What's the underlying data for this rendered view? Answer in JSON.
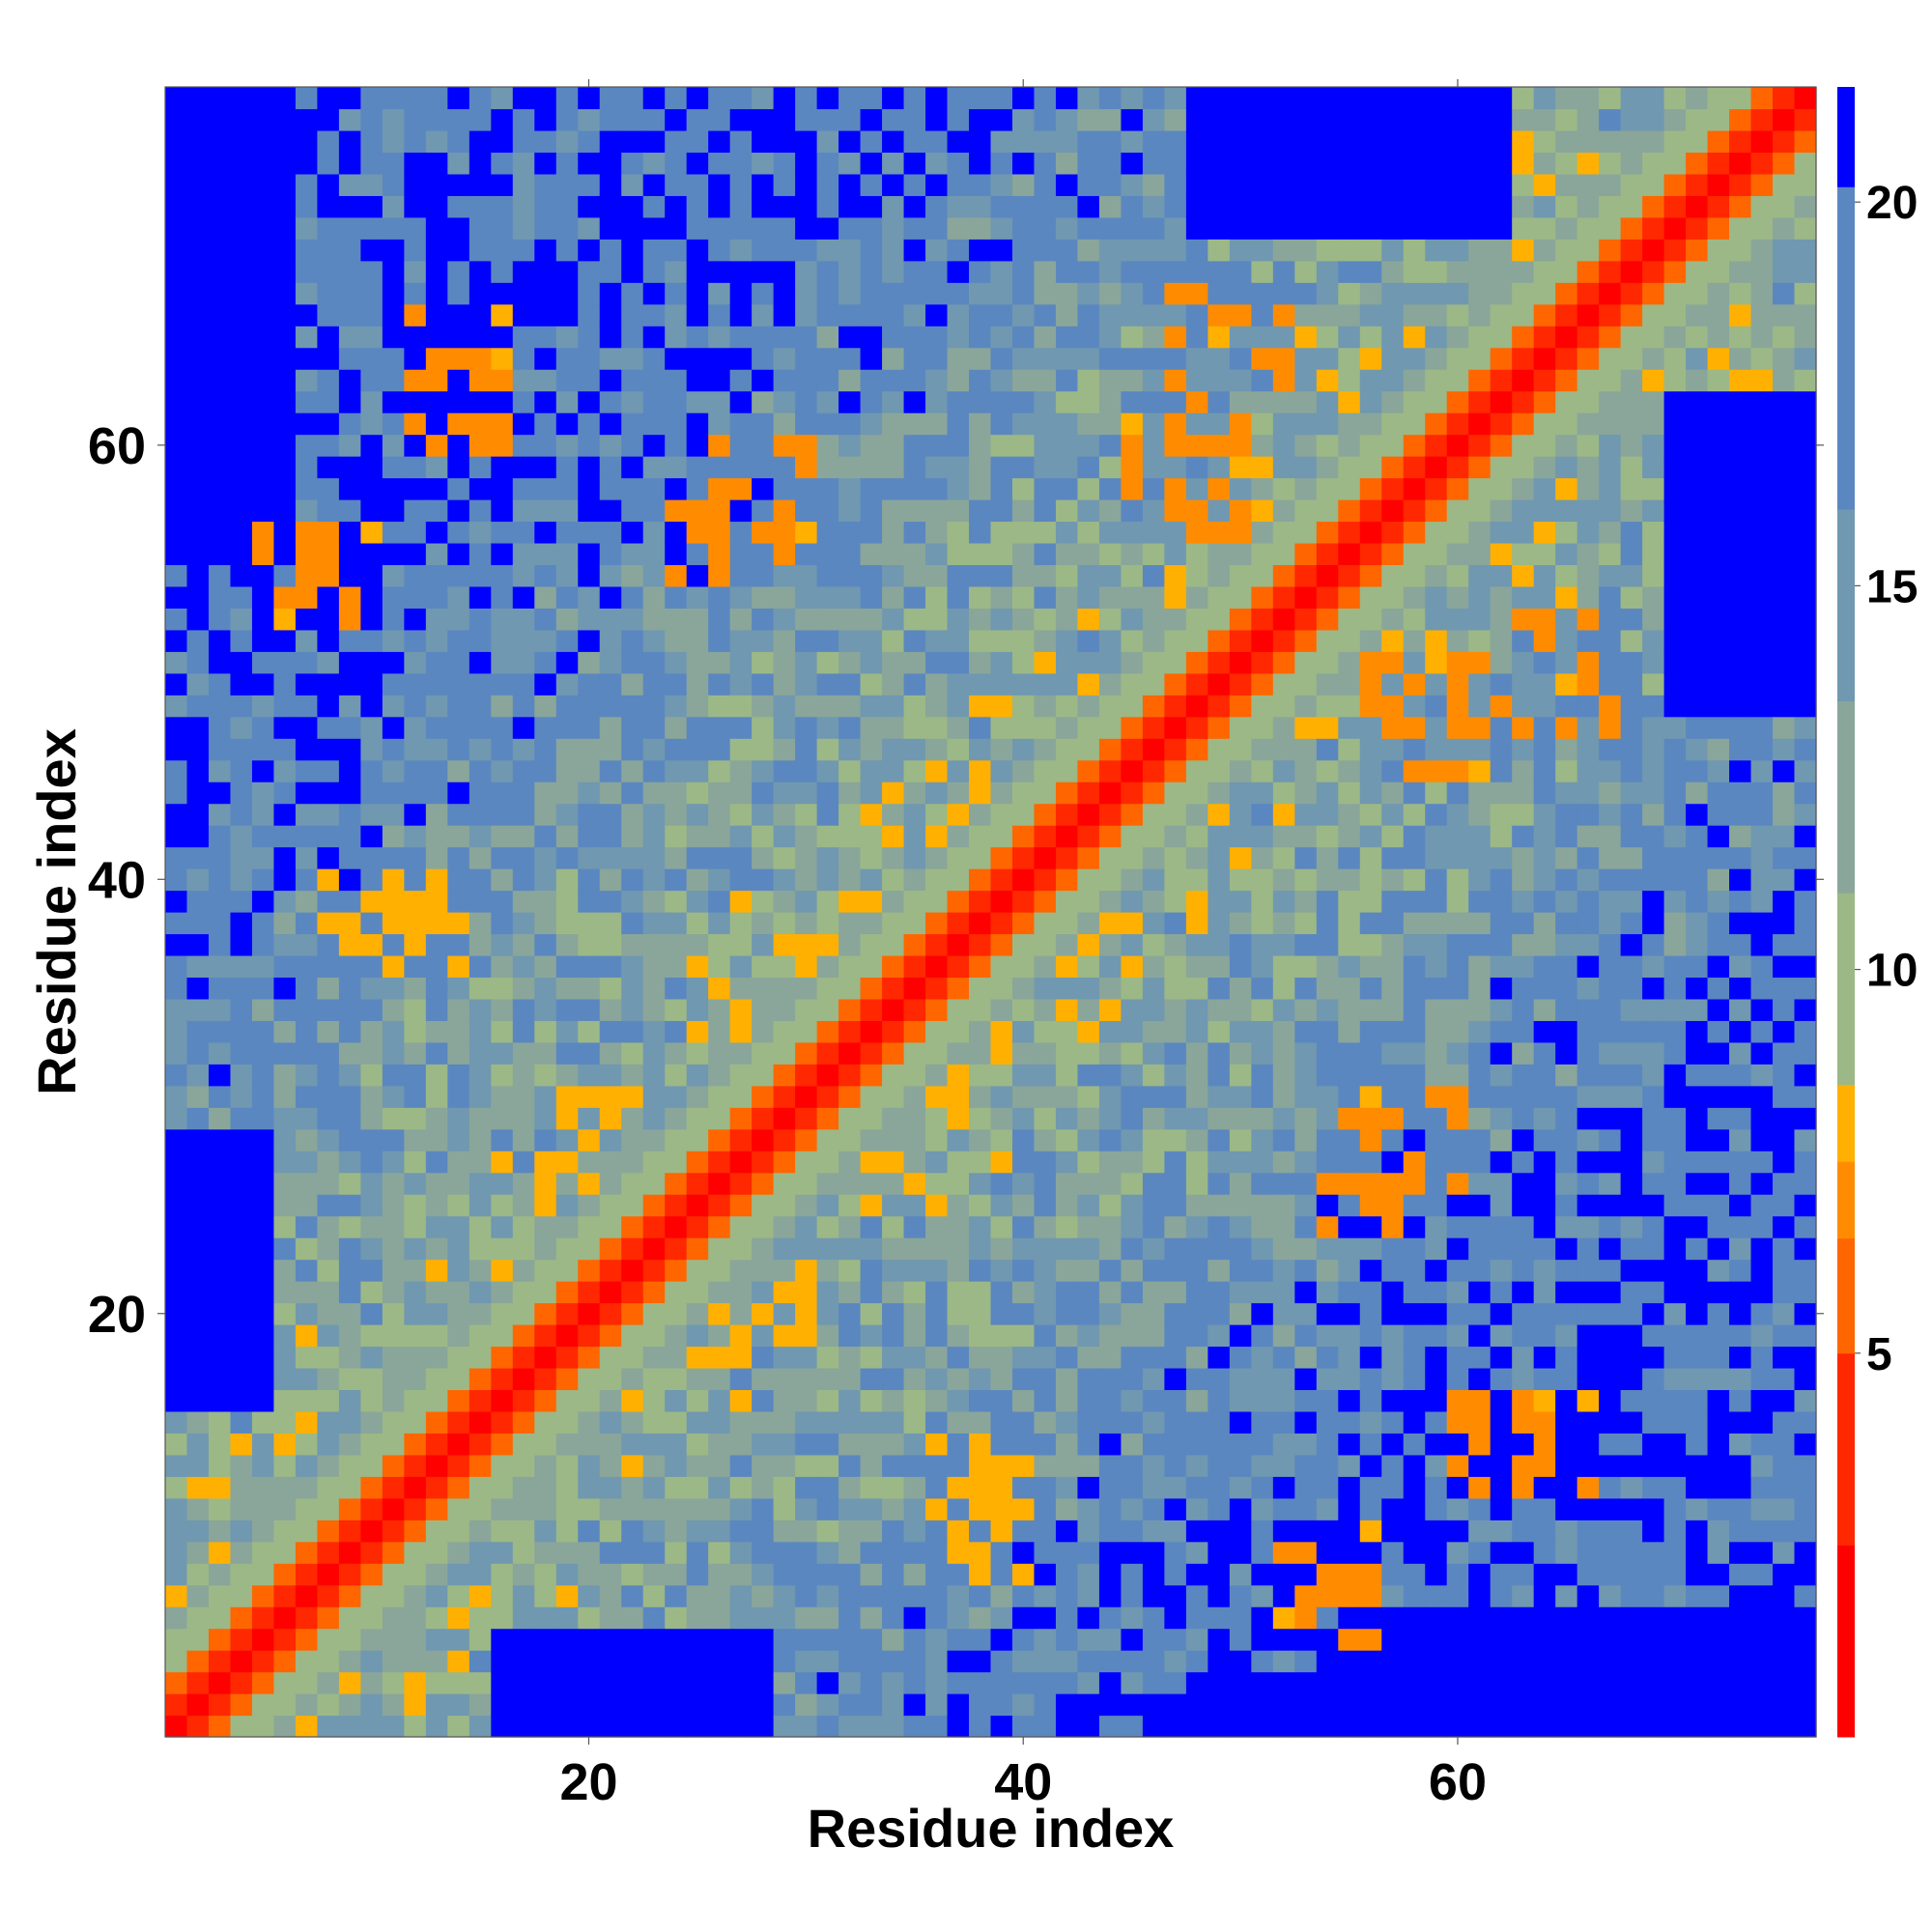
{
  "chart_data": {
    "type": "heatmap",
    "title": "",
    "xlabel": "Residue index",
    "ylabel": "Residue index",
    "n_residues": 76,
    "xlim": [
      1,
      76
    ],
    "ylim": [
      1,
      76
    ],
    "x_ticks": [
      {
        "value": 20,
        "label": "20"
      },
      {
        "value": 40,
        "label": "40"
      },
      {
        "value": 60,
        "label": "60"
      }
    ],
    "y_ticks": [
      {
        "value": 20,
        "label": "20"
      },
      {
        "value": 40,
        "label": "40"
      },
      {
        "value": 60,
        "label": "60"
      }
    ],
    "colorbar": {
      "range": [
        0,
        21.5
      ],
      "ticks": [
        {
          "value": 5,
          "label": "5"
        },
        {
          "value": 10,
          "label": "10"
        },
        {
          "value": 15,
          "label": "15"
        },
        {
          "value": 20,
          "label": "20"
        }
      ],
      "bands": [
        {
          "min": 0,
          "max": 2.5,
          "color": "#ff0000"
        },
        {
          "min": 2.5,
          "max": 5,
          "color": "#ff2800"
        },
        {
          "min": 5,
          "max": 6.5,
          "color": "#ff6600"
        },
        {
          "min": 6.5,
          "max": 7.5,
          "color": "#ff8c00"
        },
        {
          "min": 7.5,
          "max": 8.5,
          "color": "#ffb000"
        },
        {
          "min": 8.5,
          "max": 11,
          "color": "#9cb886"
        },
        {
          "min": 11,
          "max": 13.5,
          "color": "#8aa69a"
        },
        {
          "min": 13.5,
          "max": 16,
          "color": "#7098b0"
        },
        {
          "min": 16,
          "max": 20.2,
          "color": "#5b87c0"
        },
        {
          "min": 20.2,
          "max": 21.5,
          "color": "#0000ff"
        }
      ]
    },
    "diagonal_profile": [
      {
        "offset": 0,
        "value": 1
      },
      {
        "offset": 1,
        "value": 3.8
      },
      {
        "offset": 2,
        "value": 6.2
      },
      {
        "offset": 3,
        "value": 8.5
      },
      {
        "offset": 4,
        "value": 10.5
      },
      {
        "offset": 5,
        "value": 12.2
      }
    ],
    "contact_regions": [
      {
        "i_range": [
          5,
          10
        ],
        "j_range": [
          52,
          56
        ],
        "value": 7
      },
      {
        "i_range": [
          12,
          16
        ],
        "j_range": [
          60,
          66
        ],
        "value": 7
      },
      {
        "i_range": [
          18,
          22
        ],
        "j_range": [
          22,
          30
        ],
        "value": 7.5
      },
      {
        "i_range": [
          25,
          30
        ],
        "j_range": [
          55,
          60
        ],
        "value": 7
      },
      {
        "i_range": [
          45,
          50
        ],
        "j_range": [
          56,
          62
        ],
        "value": 7
      },
      {
        "i_range": [
          47,
          52
        ],
        "j_range": [
          63,
          67
        ],
        "value": 7
      },
      {
        "i_range": [
          54,
          58
        ],
        "j_range": [
          24,
          28
        ],
        "value": 7
      },
      {
        "i_range": [
          56,
          62
        ],
        "j_range": [
          46,
          50
        ],
        "value": 7
      },
      {
        "i_range": [
          61,
          66
        ],
        "j_range": [
          12,
          16
        ],
        "value": 7.5
      },
      {
        "i_range": [
          8,
          14
        ],
        "j_range": [
          36,
          40
        ],
        "value": 7.5
      }
    ],
    "far_regions": [
      {
        "i_range": [
          1,
          6
        ],
        "j_range": [
          55,
          76
        ],
        "value": 21.5
      },
      {
        "i_range": [
          55,
          76
        ],
        "j_range": [
          1,
          6
        ],
        "value": 21.5
      },
      {
        "i_range": [
          48,
          62
        ],
        "j_range": [
          70,
          76
        ],
        "value": 21.5
      },
      {
        "i_range": [
          70,
          76
        ],
        "j_range": [
          48,
          62
        ],
        "value": 21.5
      },
      {
        "i_range": [
          16,
          28
        ],
        "j_range": [
          1,
          5
        ],
        "value": 21.5
      },
      {
        "i_range": [
          1,
          5
        ],
        "j_range": [
          16,
          28
        ],
        "value": 21.5
      },
      {
        "i_range": [
          1,
          4
        ],
        "j_range": [
          18,
          24
        ],
        "value": 21.5
      },
      {
        "i_range": [
          48,
          60
        ],
        "j_range": [
          1,
          3
        ],
        "value": 21.5
      }
    ]
  }
}
